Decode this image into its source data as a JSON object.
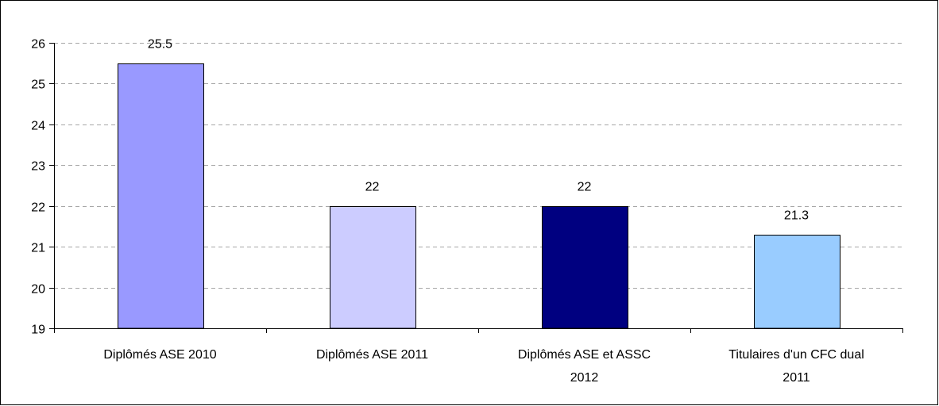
{
  "chart_data": {
    "type": "bar",
    "title": "",
    "xlabel": "",
    "ylabel": "",
    "ylim": [
      19,
      26
    ],
    "yticks": [
      19,
      20,
      21,
      22,
      23,
      24,
      25,
      26
    ],
    "grid": true,
    "legend": "none",
    "categories": [
      [
        "Diplômés ASE 2010"
      ],
      [
        "Diplômés ASE 2011"
      ],
      [
        "Diplômés ASE et ASSC",
        "2012"
      ],
      [
        "Titulaires d'un CFC dual",
        "2011"
      ]
    ],
    "values": [
      25.5,
      22,
      22,
      21.3
    ],
    "value_labels": [
      "25.5",
      "22",
      "22",
      "21.3"
    ],
    "colors": [
      "#9999FF",
      "#CCCCFF",
      "#000080",
      "#99CCFF"
    ]
  }
}
